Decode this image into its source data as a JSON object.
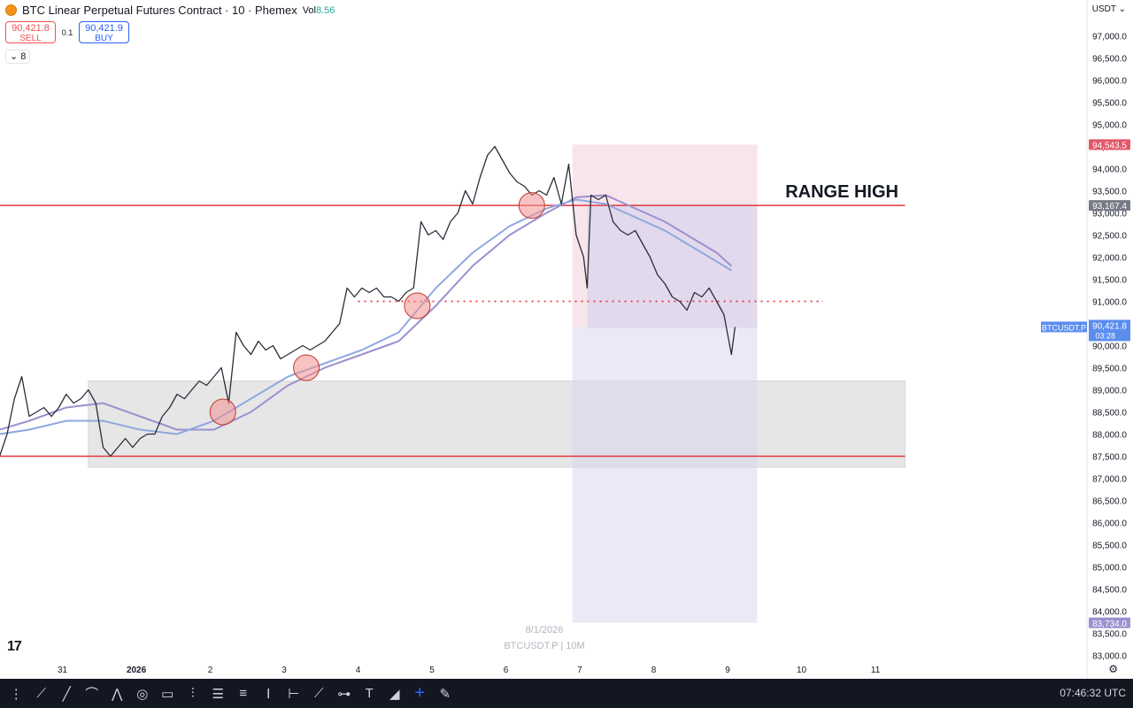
{
  "header": {
    "title": "BTC Linear Perpetual Futures Contract · 10 · Phemex",
    "vol_label": "Vol",
    "vol_value": "8.56",
    "sell_price": "90,421.8",
    "sell_label": "SELL",
    "spread": "0.1",
    "buy_price": "90,421.9",
    "buy_label": "BUY",
    "indicators_count": "8",
    "currency": "USDT",
    "icon": "bitcoin-coin-icon"
  },
  "colors": {
    "bull": "#26a69a",
    "bear": "#ef5350",
    "price_line": "#2a2e39",
    "ma_fast": "#90a7e0",
    "ma_slow": "#9c90cf",
    "level_line": "#e0393e",
    "range_zone": "#d9d9d9",
    "long_zone": "#f6dce4",
    "short_zone": "#d8d4ee",
    "circle_fill": "#f08f8f",
    "label_pink": "#e3586a",
    "label_grey": "#787b86",
    "label_blue": "#5b8def"
  },
  "chart_data": {
    "type": "line",
    "symbol": "BTCUSDT.P",
    "interval": "10M",
    "watermark_date": "8/1/2026",
    "watermark_symbol": "BTCUSDT.P | 10M",
    "ylim": [
      82800,
      97800
    ],
    "y_ticks": [
      "97,000.0",
      "96,500.0",
      "96,000.0",
      "95,500.0",
      "95,000.0",
      "94,500.0",
      "94,000.0",
      "93,500.0",
      "93,000.0",
      "92,500.0",
      "92,000.0",
      "91,500.0",
      "91,000.0",
      "90,500.0",
      "90,000.0",
      "89,500.0",
      "89,000.0",
      "88,500.0",
      "88,000.0",
      "87,500.0",
      "87,000.0",
      "86,500.0",
      "86,000.0",
      "85,500.0",
      "85,000.0",
      "84,500.0",
      "84,000.0",
      "83,500.0",
      "83,000.0"
    ],
    "x_ticks": [
      {
        "label": "31",
        "day": -0.55
      },
      {
        "label": "2026",
        "day": 0.45
      },
      {
        "label": "2",
        "day": 1.45
      },
      {
        "label": "3",
        "day": 2.45
      },
      {
        "label": "4",
        "day": 3.45
      },
      {
        "label": "5",
        "day": 4.45
      },
      {
        "label": "6",
        "day": 5.45
      },
      {
        "label": "7",
        "day": 6.45
      },
      {
        "label": "8",
        "day": 7.45
      },
      {
        "label": "9",
        "day": 8.45
      },
      {
        "label": "10",
        "day": 9.45
      },
      {
        "label": "11",
        "day": 10.45
      }
    ],
    "price_path": [
      [
        -1.4,
        87500
      ],
      [
        -1.3,
        88000
      ],
      [
        -1.2,
        88800
      ],
      [
        -1.1,
        89300
      ],
      [
        -1.0,
        88400
      ],
      [
        -0.9,
        88500
      ],
      [
        -0.8,
        88600
      ],
      [
        -0.7,
        88400
      ],
      [
        -0.6,
        88600
      ],
      [
        -0.5,
        88900
      ],
      [
        -0.4,
        88700
      ],
      [
        -0.3,
        88800
      ],
      [
        -0.2,
        89000
      ],
      [
        -0.1,
        88700
      ],
      [
        0.0,
        87700
      ],
      [
        0.1,
        87500
      ],
      [
        0.2,
        87700
      ],
      [
        0.3,
        87900
      ],
      [
        0.4,
        87700
      ],
      [
        0.5,
        87900
      ],
      [
        0.6,
        88000
      ],
      [
        0.7,
        88000
      ],
      [
        0.8,
        88400
      ],
      [
        0.9,
        88600
      ],
      [
        1.0,
        88900
      ],
      [
        1.1,
        88800
      ],
      [
        1.2,
        89000
      ],
      [
        1.3,
        89200
      ],
      [
        1.4,
        89100
      ],
      [
        1.5,
        89300
      ],
      [
        1.6,
        89500
      ],
      [
        1.7,
        88700
      ],
      [
        1.8,
        90300
      ],
      [
        1.9,
        90000
      ],
      [
        2.0,
        89800
      ],
      [
        2.1,
        90100
      ],
      [
        2.2,
        89900
      ],
      [
        2.3,
        90000
      ],
      [
        2.4,
        89700
      ],
      [
        2.5,
        89800
      ],
      [
        2.6,
        89900
      ],
      [
        2.7,
        90000
      ],
      [
        2.8,
        89900
      ],
      [
        2.9,
        90000
      ],
      [
        3.0,
        90100
      ],
      [
        3.1,
        90300
      ],
      [
        3.2,
        90500
      ],
      [
        3.3,
        91300
      ],
      [
        3.4,
        91100
      ],
      [
        3.5,
        91300
      ],
      [
        3.6,
        91200
      ],
      [
        3.7,
        91300
      ],
      [
        3.8,
        91100
      ],
      [
        3.9,
        91100
      ],
      [
        4.0,
        91000
      ],
      [
        4.1,
        91200
      ],
      [
        4.2,
        91300
      ],
      [
        4.3,
        92800
      ],
      [
        4.4,
        92500
      ],
      [
        4.5,
        92600
      ],
      [
        4.6,
        92400
      ],
      [
        4.7,
        92800
      ],
      [
        4.8,
        93000
      ],
      [
        4.9,
        93500
      ],
      [
        5.0,
        93200
      ],
      [
        5.1,
        93800
      ],
      [
        5.2,
        94300
      ],
      [
        5.3,
        94500
      ],
      [
        5.4,
        94200
      ],
      [
        5.5,
        93900
      ],
      [
        5.6,
        93700
      ],
      [
        5.7,
        93600
      ],
      [
        5.8,
        93400
      ],
      [
        5.9,
        93500
      ],
      [
        6.0,
        93400
      ],
      [
        6.1,
        93800
      ],
      [
        6.2,
        93200
      ],
      [
        6.3,
        94100
      ],
      [
        6.4,
        92500
      ],
      [
        6.5,
        92000
      ],
      [
        6.55,
        91300
      ],
      [
        6.6,
        93400
      ],
      [
        6.7,
        93300
      ],
      [
        6.8,
        93400
      ],
      [
        6.9,
        92800
      ],
      [
        7.0,
        92600
      ],
      [
        7.1,
        92500
      ],
      [
        7.2,
        92600
      ],
      [
        7.3,
        92300
      ],
      [
        7.4,
        92000
      ],
      [
        7.5,
        91600
      ],
      [
        7.6,
        91400
      ],
      [
        7.7,
        91100
      ],
      [
        7.8,
        91000
      ],
      [
        7.9,
        90800
      ],
      [
        8.0,
        91200
      ],
      [
        8.1,
        91100
      ],
      [
        8.2,
        91300
      ],
      [
        8.3,
        91000
      ],
      [
        8.4,
        90700
      ],
      [
        8.5,
        89800
      ],
      [
        8.55,
        90420
      ]
    ],
    "ma_fast": [
      [
        -1.4,
        88000
      ],
      [
        -1.0,
        88100
      ],
      [
        -0.5,
        88300
      ],
      [
        0.0,
        88300
      ],
      [
        0.5,
        88100
      ],
      [
        1.0,
        88000
      ],
      [
        1.5,
        88300
      ],
      [
        2.0,
        88800
      ],
      [
        2.5,
        89300
      ],
      [
        3.0,
        89600
      ],
      [
        3.5,
        89900
      ],
      [
        4.0,
        90300
      ],
      [
        4.5,
        91300
      ],
      [
        5.0,
        92100
      ],
      [
        5.5,
        92700
      ],
      [
        6.0,
        93100
      ],
      [
        6.4,
        93300
      ],
      [
        6.8,
        93200
      ],
      [
        7.2,
        92900
      ],
      [
        7.6,
        92600
      ],
      [
        8.0,
        92200
      ],
      [
        8.3,
        91900
      ],
      [
        8.5,
        91700
      ]
    ],
    "ma_slow": [
      [
        -1.4,
        88100
      ],
      [
        -1.0,
        88300
      ],
      [
        -0.5,
        88600
      ],
      [
        0.0,
        88700
      ],
      [
        0.5,
        88400
      ],
      [
        1.0,
        88100
      ],
      [
        1.5,
        88100
      ],
      [
        2.0,
        88500
      ],
      [
        2.5,
        89100
      ],
      [
        3.0,
        89500
      ],
      [
        3.5,
        89800
      ],
      [
        4.0,
        90100
      ],
      [
        4.5,
        90900
      ],
      [
        5.0,
        91800
      ],
      [
        5.5,
        92500
      ],
      [
        6.0,
        93000
      ],
      [
        6.4,
        93350
      ],
      [
        6.8,
        93400
      ],
      [
        7.2,
        93100
      ],
      [
        7.6,
        92800
      ],
      [
        8.0,
        92400
      ],
      [
        8.3,
        92100
      ],
      [
        8.5,
        91800
      ]
    ],
    "range_high": 93167.4,
    "range_high_label": "RANGE HIGH",
    "range_low": 87500,
    "mid_level": 91000,
    "range_zone": {
      "top": 89200,
      "bottom": 87250,
      "day_start": -0.2,
      "day_end": 10.85
    },
    "position": {
      "day_start": 6.35,
      "day_end": 8.85,
      "entry": 90421.8,
      "target": 94543.5,
      "stop": 83734.0,
      "inner_start": 6.55,
      "inner_top": 93167.4,
      "inner_bottom": 90400
    },
    "touch_points": [
      [
        1.62,
        88500
      ],
      [
        2.75,
        89500
      ],
      [
        4.25,
        90900
      ],
      [
        5.8,
        93167.4
      ]
    ],
    "price_labels": {
      "target": "94,543.5",
      "range_high": "93,167.4",
      "last": "90,421.8",
      "countdown": "03:28",
      "symbol": "BTCUSDT.P",
      "stop": "83,734.0"
    }
  },
  "toolbar": {
    "tools": [
      "grip-icon",
      "brush-icon",
      "trend-line-icon",
      "curve-icon",
      "path-icon",
      "target-icon",
      "rectangle-icon",
      "pitchfork-icon",
      "fib-icon",
      "parallel-channel-icon",
      "text-cursor-icon",
      "measure-icon",
      "polyline-icon",
      "forecast-icon",
      "text-icon",
      "fill-icon",
      "crosshair-icon",
      "eraser-pen-icon"
    ],
    "clock": "07:46:32 UTC"
  },
  "footer": {
    "settings_icon": "gear-icon"
  }
}
